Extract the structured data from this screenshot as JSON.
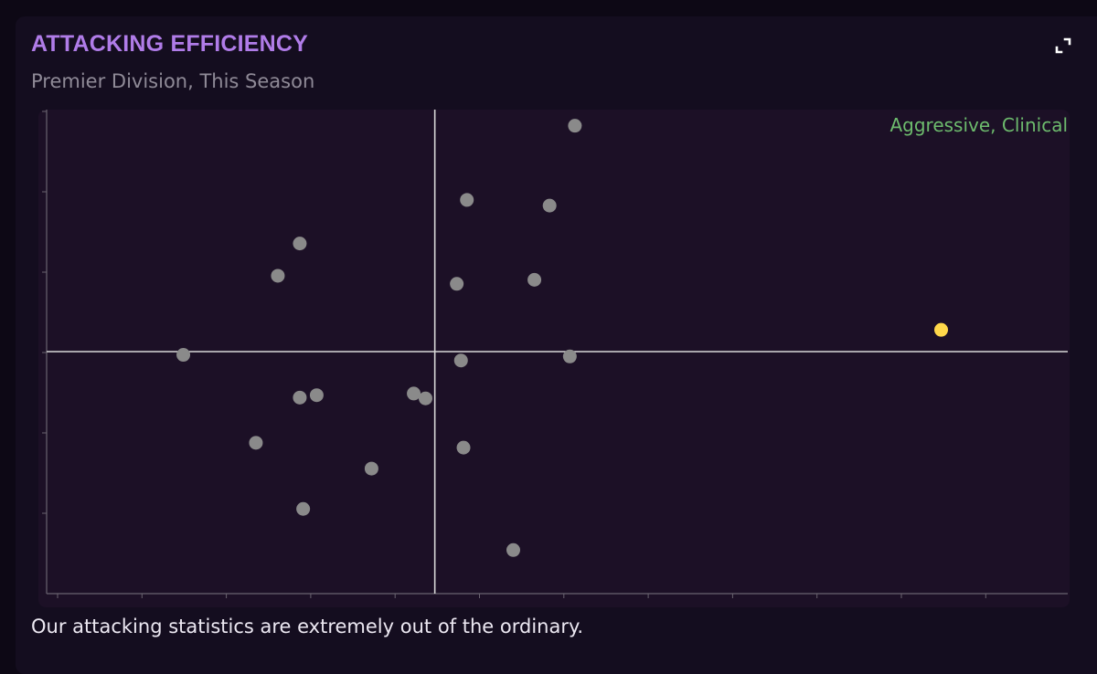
{
  "widget": {
    "title": "ATTACKING EFFICIENCY",
    "subtitle": "Premier Division, This Season",
    "caption": "Our attacking statistics are extremely out of the ordinary.",
    "expand_icon": "expand-icon"
  },
  "chart_data": {
    "type": "scatter",
    "title": "ATTACKING EFFICIENCY",
    "subtitle": "Premier Division, This Season",
    "quadrant_label": "Aggressive, Clinical",
    "xlim": [
      -4.6,
      7.5
    ],
    "ylim": [
      -3.0,
      3.0
    ],
    "grid": false,
    "reference_lines": {
      "x": 0,
      "y": 0
    },
    "colors": {
      "background": "#1c1026",
      "team_point": "#8a8a8a",
      "highlight_point": "#ffd84a",
      "axis": "#d8d8d8",
      "quadrant_label": "#6dbb6d"
    },
    "series": [
      {
        "points": [
          {
            "x": 1.66,
            "y": 2.8
          },
          {
            "x": 0.38,
            "y": 1.88
          },
          {
            "x": 1.36,
            "y": 1.81
          },
          {
            "x": -1.6,
            "y": 1.34
          },
          {
            "x": -1.86,
            "y": 0.94
          },
          {
            "x": 0.26,
            "y": 0.84
          },
          {
            "x": 1.18,
            "y": 0.89
          },
          {
            "x": -2.98,
            "y": -0.04
          },
          {
            "x": 0.31,
            "y": -0.11
          },
          {
            "x": 1.6,
            "y": -0.06
          },
          {
            "x": -1.6,
            "y": -0.57
          },
          {
            "x": -1.4,
            "y": -0.54
          },
          {
            "x": -0.25,
            "y": -0.52
          },
          {
            "x": -0.11,
            "y": -0.58
          },
          {
            "x": -2.12,
            "y": -1.13
          },
          {
            "x": 0.34,
            "y": -1.19
          },
          {
            "x": -0.75,
            "y": -1.45
          },
          {
            "x": -1.56,
            "y": -1.95
          },
          {
            "x": 0.93,
            "y": -2.46
          }
        ]
      },
      {
        "highlight": true,
        "points": [
          {
            "x": 6.0,
            "y": 0.27
          }
        ]
      }
    ]
  }
}
